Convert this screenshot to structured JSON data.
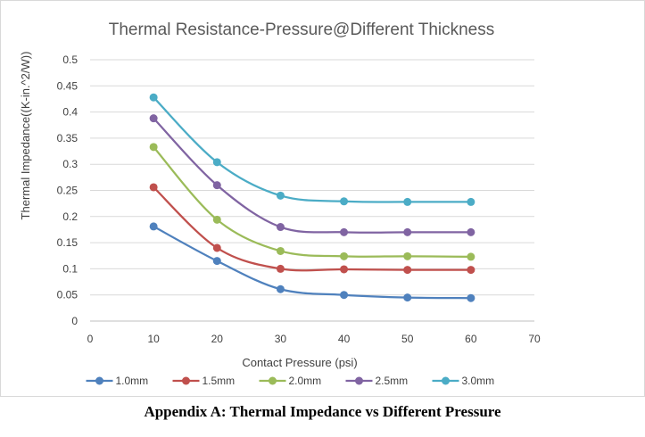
{
  "chart_data": {
    "type": "line",
    "title": "Thermal Resistance-Pressure@Different Thickness",
    "xlabel": "Contact Pressure (psi)",
    "ylabel": "Thermal Impedance((K-in.^2/W))",
    "xlim": [
      0,
      70
    ],
    "ylim": [
      0,
      0.5
    ],
    "xticks": [
      "0",
      "10",
      "20",
      "30",
      "40",
      "50",
      "60",
      "70"
    ],
    "yticks": [
      "0",
      "0.05",
      "0.1",
      "0.15",
      "0.2",
      "0.25",
      "0.3",
      "0.35",
      "0.4",
      "0.45",
      "0.5"
    ],
    "grid": true,
    "legend_position": "bottom",
    "x": [
      10,
      20,
      30,
      40,
      50,
      60
    ],
    "series": [
      {
        "name": "1.0mm",
        "color": "#4F81BD",
        "values": [
          0.181,
          0.115,
          0.061,
          0.05,
          0.045,
          0.044
        ]
      },
      {
        "name": "1.5mm",
        "color": "#C0504D",
        "values": [
          0.256,
          0.14,
          0.1,
          0.099,
          0.098,
          0.098
        ]
      },
      {
        "name": "2.0mm",
        "color": "#9BBB59",
        "values": [
          0.333,
          0.194,
          0.134,
          0.124,
          0.124,
          0.123
        ]
      },
      {
        "name": "2.5mm",
        "color": "#8064A2",
        "values": [
          0.388,
          0.26,
          0.18,
          0.17,
          0.17,
          0.17
        ]
      },
      {
        "name": "3.0mm",
        "color": "#4BACC6",
        "values": [
          0.428,
          0.304,
          0.24,
          0.229,
          0.228,
          0.228
        ]
      }
    ]
  },
  "caption": "Appendix A: Thermal Impedance vs Different Pressure"
}
